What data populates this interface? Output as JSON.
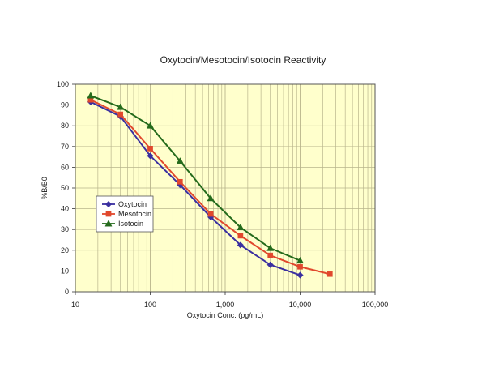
{
  "chart_data": {
    "type": "line",
    "title": "Oxytocin/Mesotocin/Isotocin Reactivity",
    "xlabel": "Oxytocin Conc. (pg/mL)",
    "ylabel": "%B/B0",
    "xscale": "log",
    "xlim": [
      10,
      100000
    ],
    "ylim": [
      0,
      100
    ],
    "x_tick_values": [
      10,
      100,
      1000,
      10000,
      100000
    ],
    "x_tick_labels": [
      "10",
      "100",
      "1,000",
      "10,000",
      "100,000"
    ],
    "y_tick_values": [
      0,
      10,
      20,
      30,
      40,
      50,
      60,
      70,
      80,
      90,
      100
    ],
    "y_tick_labels": [
      "0",
      "10",
      "20",
      "30",
      "40",
      "50",
      "60",
      "70",
      "80",
      "90",
      "100"
    ],
    "grid": true,
    "legend_position": "left-middle",
    "background_color": "#ffffcc",
    "grid_color": "#b9b58c",
    "series": [
      {
        "name": "Oxytocin",
        "color": "#3a2fa0",
        "marker": "diamond",
        "x": [
          16,
          40,
          100,
          250,
          640,
          1600,
          4000,
          10000
        ],
        "y": [
          91.5,
          84.5,
          65.5,
          51.5,
          36,
          22.5,
          13,
          8
        ]
      },
      {
        "name": "Mesotocin",
        "color": "#e1482d",
        "marker": "square",
        "x": [
          16,
          40,
          100,
          250,
          640,
          1600,
          4000,
          10000,
          25000
        ],
        "y": [
          92.5,
          85.5,
          69,
          53,
          37.5,
          27,
          17.5,
          12,
          8.5
        ]
      },
      {
        "name": "Isotocin",
        "color": "#256b1c",
        "marker": "triangle",
        "x": [
          16,
          40,
          100,
          250,
          640,
          1600,
          4000,
          10000
        ],
        "y": [
          94.5,
          89,
          80,
          63,
          45,
          31,
          21,
          15
        ]
      }
    ]
  }
}
